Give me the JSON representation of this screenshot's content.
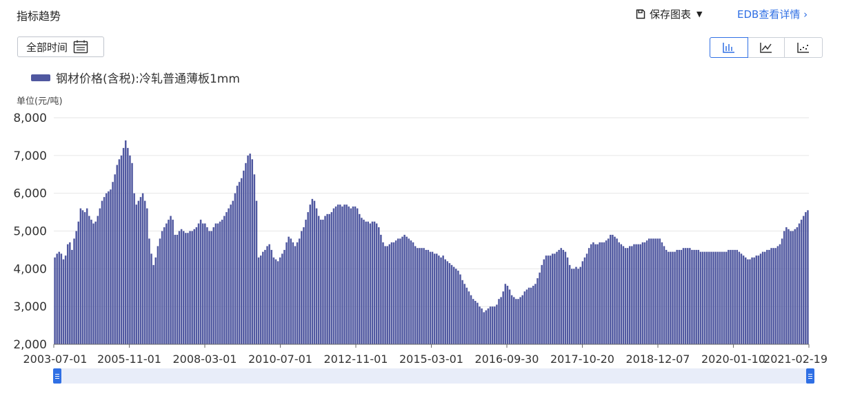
{
  "header": {
    "title": "指标趋势",
    "save_label": "保存图表",
    "edb_label": "EDB查看详情 ›"
  },
  "controls": {
    "time_range_label": "全部时间"
  },
  "chart_types": [
    "bar-chart-icon",
    "line-chart-icon",
    "scatter-chart-icon"
  ],
  "accent_color": "#2f6fe4",
  "series_color": "#5058a0",
  "chart_data": {
    "type": "bar",
    "legend": "钢材价格(含税):冷轧普通薄板1mm",
    "unit": "单位(元/吨)",
    "ylim": [
      2000,
      8000
    ],
    "yticks": [
      "2,000",
      "3,000",
      "4,000",
      "5,000",
      "6,000",
      "7,000",
      "8,000"
    ],
    "xticks": [
      "2003-07-01",
      "2005-11-01",
      "2008-03-01",
      "2010-07-01",
      "2012-11-01",
      "2015-03-01",
      "2016-09-30",
      "2017-10-20",
      "2018-12-07",
      "2020-01-10",
      "2021-02-19"
    ],
    "grid": true,
    "values": [
      4300,
      4400,
      4450,
      4400,
      4250,
      4350,
      4650,
      4700,
      4500,
      4800,
      5000,
      5250,
      5600,
      5550,
      5500,
      5600,
      5400,
      5300,
      5200,
      5250,
      5400,
      5600,
      5800,
      5900,
      6000,
      6050,
      6100,
      6300,
      6500,
      6750,
      6900,
      7000,
      7200,
      7400,
      7200,
      7000,
      6800,
      6000,
      5700,
      5800,
      5900,
      6000,
      5800,
      5600,
      4800,
      4400,
      4100,
      4300,
      4600,
      4800,
      5000,
      5100,
      5200,
      5300,
      5400,
      5300,
      4900,
      4900,
      5000,
      5050,
      5000,
      4950,
      4950,
      5000,
      5000,
      5050,
      5100,
      5200,
      5300,
      5200,
      5200,
      5100,
      5000,
      5000,
      5100,
      5200,
      5200,
      5250,
      5300,
      5400,
      5500,
      5600,
      5700,
      5800,
      6000,
      6200,
      6300,
      6400,
      6600,
      6800,
      7000,
      7050,
      6900,
      6500,
      5800,
      4300,
      4350,
      4450,
      4500,
      4600,
      4650,
      4500,
      4300,
      4250,
      4200,
      4300,
      4400,
      4500,
      4700,
      4850,
      4800,
      4700,
      4600,
      4700,
      4800,
      5000,
      5100,
      5300,
      5500,
      5700,
      5850,
      5800,
      5600,
      5400,
      5300,
      5300,
      5400,
      5450,
      5450,
      5500,
      5600,
      5650,
      5700,
      5700,
      5650,
      5700,
      5700,
      5650,
      5600,
      5650,
      5650,
      5600,
      5450,
      5350,
      5300,
      5250,
      5250,
      5200,
      5250,
      5250,
      5200,
      5100,
      4900,
      4700,
      4600,
      4600,
      4650,
      4700,
      4700,
      4750,
      4800,
      4800,
      4850,
      4900,
      4850,
      4800,
      4750,
      4700,
      4600,
      4550,
      4550,
      4550,
      4550,
      4500,
      4500,
      4450,
      4450,
      4400,
      4400,
      4350,
      4300,
      4350,
      4250,
      4200,
      4150,
      4100,
      4050,
      4000,
      3950,
      3850,
      3700,
      3600,
      3500,
      3400,
      3300,
      3200,
      3150,
      3100,
      3000,
      2950,
      2850,
      2900,
      2950,
      3000,
      3000,
      3000,
      3050,
      3200,
      3250,
      3400,
      3600,
      3550,
      3450,
      3300,
      3250,
      3200,
      3200,
      3250,
      3300,
      3400,
      3450,
      3500,
      3500,
      3550,
      3600,
      3750,
      3900,
      4100,
      4250,
      4350,
      4350,
      4350,
      4400,
      4400,
      4450,
      4500,
      4550,
      4500,
      4450,
      4300,
      4100,
      4000,
      4000,
      4050,
      4000,
      4050,
      4200,
      4300,
      4400,
      4550,
      4650,
      4700,
      4650,
      4650,
      4700,
      4700,
      4700,
      4750,
      4800,
      4900,
      4900,
      4850,
      4800,
      4700,
      4650,
      4600,
      4550,
      4550,
      4600,
      4600,
      4650,
      4650,
      4650,
      4650,
      4700,
      4700,
      4750,
      4800,
      4800,
      4800,
      4800,
      4800,
      4800,
      4700,
      4600,
      4500,
      4450,
      4450,
      4450,
      4450,
      4500,
      4500,
      4500,
      4550,
      4550,
      4550,
      4550,
      4500,
      4500,
      4500,
      4500,
      4450,
      4450,
      4450,
      4450,
      4450,
      4450,
      4450,
      4450,
      4450,
      4450,
      4450,
      4450,
      4450,
      4500,
      4500,
      4500,
      4500,
      4500,
      4450,
      4400,
      4350,
      4300,
      4250,
      4250,
      4300,
      4300,
      4350,
      4350,
      4400,
      4450,
      4450,
      4500,
      4500,
      4550,
      4550,
      4550,
      4600,
      4650,
      4800,
      5000,
      5100,
      5050,
      5000,
      5000,
      5050,
      5100,
      5200,
      5300,
      5400,
      5500,
      5550
    ]
  }
}
